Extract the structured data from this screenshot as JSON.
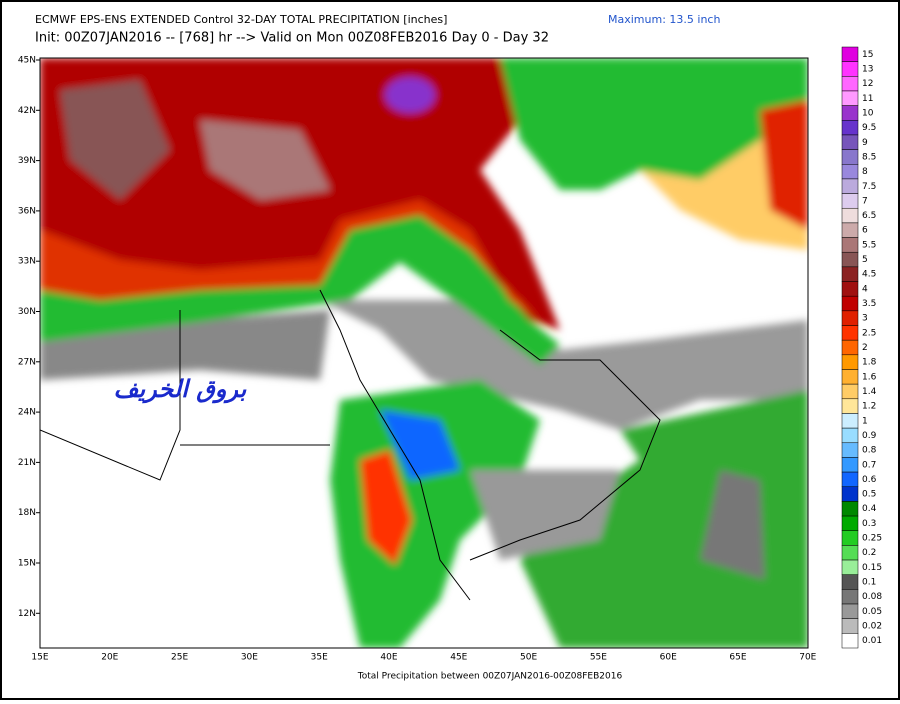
{
  "header": {
    "line1": "ECMWF EPS-ENS EXTENDED Control 32-DAY TOTAL PRECIPITATION [inches]",
    "line2": "Init: 00Z07JAN2016 -- [768] hr --> Valid on Mon 00Z08FEB2016  Day 0 - Day 32",
    "maximum": "Maximum: 13.5 inch"
  },
  "map": {
    "lat_labels": [
      "45N",
      "42N",
      "39N",
      "36N",
      "33N",
      "30N",
      "27N",
      "24N",
      "21N",
      "18N",
      "15N",
      "12N"
    ],
    "lon_labels": [
      "15E",
      "20E",
      "25E",
      "30E",
      "35E",
      "40E",
      "45E",
      "50E",
      "55E",
      "60E",
      "65E",
      "70E"
    ],
    "watermark": "بروق الخريف",
    "footer": "Total Precipitation between 00Z07JAN2016-00Z08FEB2016"
  },
  "legend": {
    "labels": [
      "15",
      "13",
      "12",
      "11",
      "10",
      "9.5",
      "9",
      "8.5",
      "8",
      "7.5",
      "7",
      "6.5",
      "6",
      "5.5",
      "5",
      "4.5",
      "4",
      "3.5",
      "3",
      "2.5",
      "2",
      "1.8",
      "1.6",
      "1.4",
      "1.2",
      "1",
      "0.9",
      "0.8",
      "0.7",
      "0.6",
      "0.5",
      "0.4",
      "0.3",
      "0.25",
      "0.2",
      "0.15",
      "0.1",
      "0.08",
      "0.05",
      "0.02",
      "0.01"
    ],
    "colors": [
      "#e000e0",
      "#ff33ff",
      "#ff66ff",
      "#ff99ff",
      "#9933cc",
      "#6633cc",
      "#7755bb",
      "#8877cc",
      "#9988dd",
      "#bbaadd",
      "#ddccee",
      "#eedddd",
      "#ccaaaa",
      "#aa7777",
      "#885555",
      "#8b2222",
      "#a01010",
      "#c00000",
      "#e02000",
      "#ff3300",
      "#ff6600",
      "#ff9900",
      "#ffb030",
      "#ffcc66",
      "#ffe699",
      "#cceeff",
      "#99ddff",
      "#66bbff",
      "#3399ff",
      "#1166ff",
      "#0033cc",
      "#008800",
      "#00aa00",
      "#22cc22",
      "#55dd55",
      "#99ee99",
      "#555555",
      "#777777",
      "#999999",
      "#bbbbbb",
      "#ffffff"
    ]
  }
}
